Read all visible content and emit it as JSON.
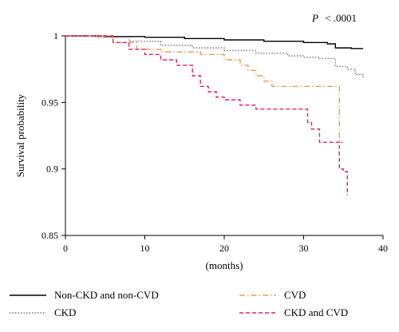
{
  "chart_data": {
    "type": "line",
    "title": "",
    "annotation": {
      "p_label": "P",
      "p_value": "< .0001"
    },
    "xlabel": "(months)",
    "ylabel": "Survival probability",
    "xlim": [
      0,
      40
    ],
    "ylim": [
      0.85,
      1.0
    ],
    "x_ticks": [
      0,
      10,
      20,
      30,
      40
    ],
    "x_tick_labels": [
      "0",
      "10",
      "20",
      "30",
      "40"
    ],
    "y_ticks": [
      0.85,
      0.9,
      0.95,
      1.0
    ],
    "y_tick_labels": [
      "0.85",
      "0.9",
      "0.95",
      "1"
    ],
    "grid": false,
    "legend_position": "bottom",
    "series": [
      {
        "name": "Non-CKD and non-CVD",
        "color": "#000000",
        "dash": "solid",
        "x": [
          0,
          5,
          10,
          15,
          20,
          25,
          30,
          33,
          34,
          36,
          37.5
        ],
        "y": [
          1.0,
          0.9995,
          0.999,
          0.998,
          0.997,
          0.996,
          0.995,
          0.994,
          0.991,
          0.9905,
          0.9905
        ]
      },
      {
        "name": "CKD",
        "color": "#777777",
        "dash": "dotted",
        "x": [
          0,
          4,
          8,
          12,
          16,
          20,
          24,
          28,
          30,
          32,
          34,
          35.5,
          36.5,
          37.5
        ],
        "y": [
          1.0,
          0.999,
          0.996,
          0.993,
          0.991,
          0.989,
          0.987,
          0.985,
          0.984,
          0.983,
          0.977,
          0.975,
          0.971,
          0.968
        ]
      },
      {
        "name": "CVD",
        "color": "#F39A4C",
        "dash": "dashdot",
        "x": [
          0,
          4,
          6,
          9,
          12,
          17,
          20,
          22,
          23,
          24,
          25,
          26,
          30,
          34.5,
          34.5,
          35
        ],
        "y": [
          1.0,
          1.0,
          0.995,
          0.99,
          0.988,
          0.986,
          0.982,
          0.978,
          0.974,
          0.97,
          0.966,
          0.962,
          0.962,
          0.962,
          0.92,
          0.92
        ]
      },
      {
        "name": "CKD and CVD",
        "color": "#E8205A",
        "dash": "dashed",
        "x": [
          0,
          4,
          6,
          8,
          10,
          12,
          14,
          16,
          17,
          18,
          19,
          20,
          22,
          24,
          28,
          30,
          30.5,
          31,
          32,
          33,
          34,
          34.5,
          35,
          35.5
        ],
        "y": [
          1.0,
          1.0,
          0.995,
          0.99,
          0.986,
          0.982,
          0.978,
          0.97,
          0.962,
          0.958,
          0.954,
          0.952,
          0.948,
          0.945,
          0.945,
          0.945,
          0.935,
          0.93,
          0.92,
          0.92,
          0.92,
          0.9,
          0.898,
          0.88
        ]
      }
    ]
  }
}
